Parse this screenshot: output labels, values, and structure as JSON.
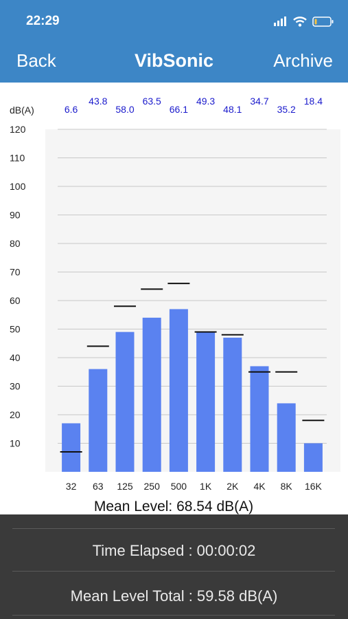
{
  "status": {
    "time": "22:29"
  },
  "nav": {
    "back": "Back",
    "title": "VibSonic",
    "archive": "Archive"
  },
  "chart_data": {
    "type": "bar",
    "ylabel": "dB(A)",
    "ylim": [
      0,
      120
    ],
    "yticks": [
      10,
      20,
      30,
      40,
      50,
      60,
      70,
      80,
      90,
      100,
      110,
      120
    ],
    "categories": [
      "32",
      "63",
      "125",
      "250",
      "500",
      "1K",
      "2K",
      "4K",
      "8K",
      "16K"
    ],
    "values": [
      17,
      36,
      49,
      54,
      57,
      49,
      47,
      37,
      24,
      10
    ],
    "markers": [
      7,
      44,
      58,
      64,
      66,
      49,
      48,
      35,
      35,
      18
    ],
    "top_labels": [
      "6.6",
      "43.8",
      "58.0",
      "63.5",
      "66.1",
      "49.3",
      "48.1",
      "34.7",
      "35.2",
      "18.4"
    ],
    "bar_color": "#5a82f0",
    "label_color": "#1a1acc",
    "grid": true
  },
  "mean_level": "Mean Level: 68.54 dB(A)",
  "footer": {
    "time_elapsed": "Time Elapsed : 00:00:02",
    "mean_total": "Mean Level Total : 59.58 dB(A)"
  },
  "colors": {
    "header": "#3d86c6",
    "footer": "#3a3a3a"
  }
}
